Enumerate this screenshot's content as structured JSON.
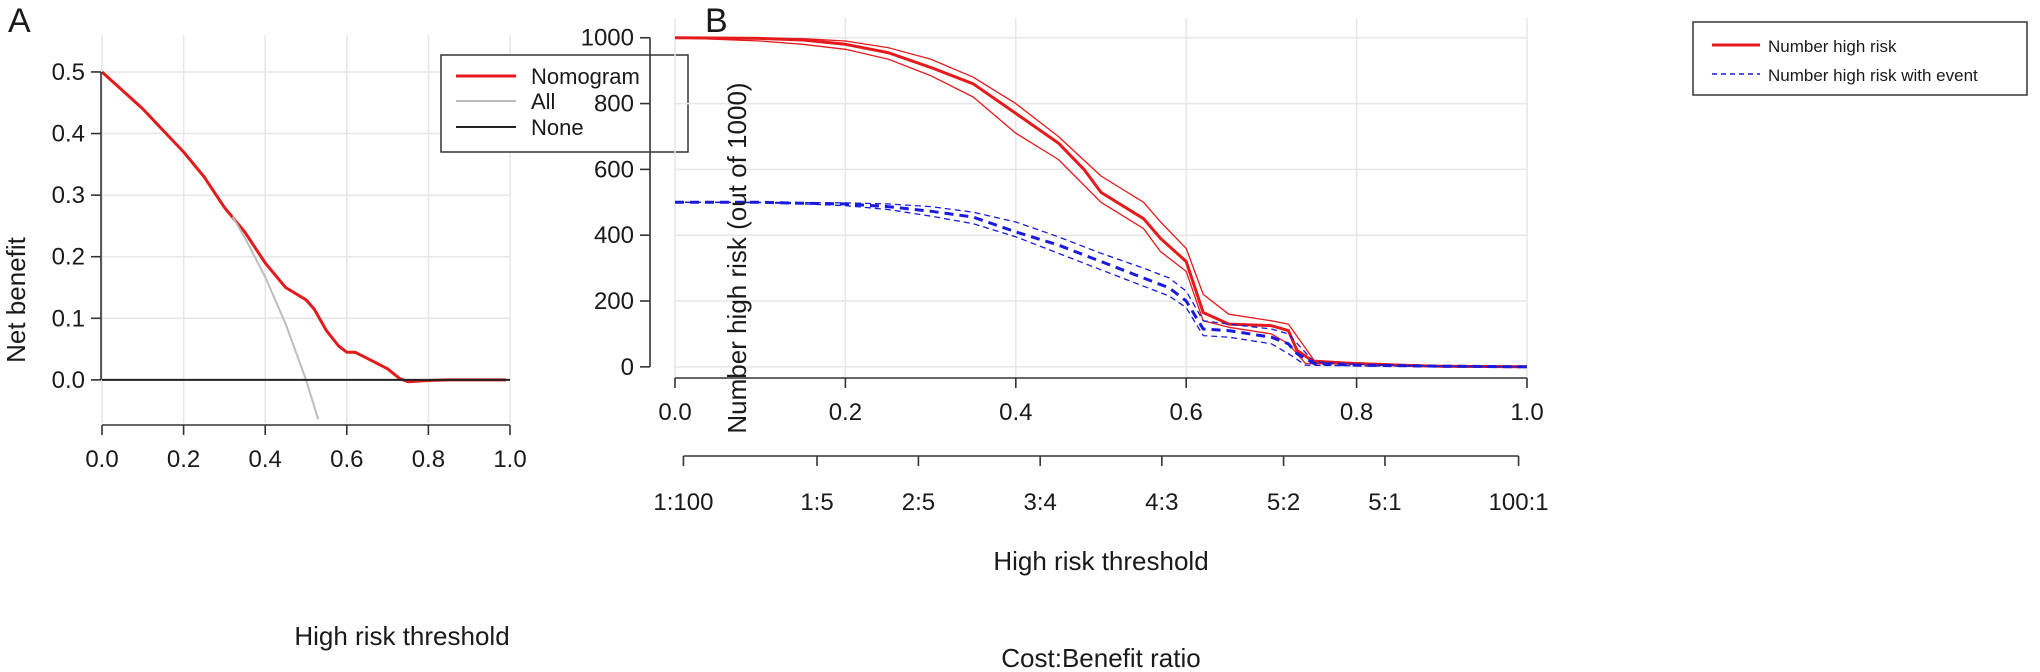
{
  "chart_data": [
    {
      "type": "line",
      "panel_label": "A",
      "xlabel": "High risk threshold",
      "ylabel": "Net benefit",
      "xlim": [
        0,
        1
      ],
      "ylim": [
        -0.07,
        0.56
      ],
      "x_ticks": [
        "0.0",
        "0.2",
        "0.4",
        "0.6",
        "0.8",
        "1.0"
      ],
      "y_ticks": [
        "0.0",
        "0.1",
        "0.2",
        "0.3",
        "0.4",
        "0.5"
      ],
      "grid": true,
      "legend_position": "top-right",
      "series": [
        {
          "name": "Nomogram",
          "color": "#e41a1c",
          "x": [
            0,
            0.05,
            0.1,
            0.15,
            0.2,
            0.25,
            0.3,
            0.35,
            0.4,
            0.45,
            0.5,
            0.52,
            0.55,
            0.58,
            0.6,
            0.62,
            0.65,
            0.7,
            0.73,
            0.75,
            0.8,
            0.85,
            0.9,
            0.95,
            0.99
          ],
          "y": [
            0.5,
            0.47,
            0.44,
            0.405,
            0.37,
            0.33,
            0.28,
            0.24,
            0.19,
            0.15,
            0.13,
            0.115,
            0.08,
            0.055,
            0.045,
            0.045,
            0.035,
            0.018,
            0.002,
            -0.003,
            -0.001,
            0.0,
            0.0,
            0.0,
            0.0
          ]
        },
        {
          "name": "All",
          "color": "#bdbdbd",
          "x": [
            0.32,
            0.35,
            0.4,
            0.45,
            0.5,
            0.53
          ],
          "y": [
            0.265,
            0.231,
            0.167,
            0.091,
            0.0,
            -0.064
          ]
        },
        {
          "name": "None",
          "color": "#222222",
          "x": [
            0,
            1
          ],
          "y": [
            0,
            0
          ]
        }
      ]
    },
    {
      "type": "line",
      "panel_label": "B",
      "xlabel": "High risk threshold",
      "ylabel": "Number high risk (out of 1000)",
      "xlim": [
        0,
        1
      ],
      "ylim": [
        -40,
        1060
      ],
      "x_ticks": [
        "0.0",
        "0.2",
        "0.4",
        "0.6",
        "0.8",
        "1.0"
      ],
      "y_ticks": [
        "0",
        "200",
        "400",
        "600",
        "800",
        "1000"
      ],
      "secondary_axis_label": "Cost:Benefit ratio",
      "secondary_ticks": [
        {
          "label": "1:100",
          "at": 0.0099
        },
        {
          "label": "1:5",
          "at": 0.1667
        },
        {
          "label": "2:5",
          "at": 0.2857
        },
        {
          "label": "3:4",
          "at": 0.4286
        },
        {
          "label": "4:3",
          "at": 0.5714
        },
        {
          "label": "5:2",
          "at": 0.7143
        },
        {
          "label": "5:1",
          "at": 0.8333
        },
        {
          "label": "100:1",
          "at": 0.9901
        }
      ],
      "grid": true,
      "legend_position": "top-right",
      "series": [
        {
          "name": "Number high risk",
          "color": "#e41a1c",
          "style": "solid",
          "x": [
            0,
            0.1,
            0.15,
            0.2,
            0.25,
            0.3,
            0.35,
            0.4,
            0.45,
            0.48,
            0.5,
            0.55,
            0.57,
            0.6,
            0.62,
            0.65,
            0.7,
            0.72,
            0.73,
            0.75,
            0.8,
            0.85,
            0.9,
            1.0
          ],
          "y": [
            1000,
            998,
            993,
            980,
            955,
            910,
            860,
            770,
            680,
            600,
            530,
            450,
            390,
            320,
            165,
            130,
            125,
            110,
            50,
            15,
            10,
            5,
            2,
            0
          ]
        },
        {
          "name": "",
          "color": "#e41a1c",
          "style": "thin",
          "x": [
            0,
            0.1,
            0.15,
            0.2,
            0.25,
            0.3,
            0.35,
            0.4,
            0.45,
            0.5,
            0.55,
            0.57,
            0.6,
            0.62,
            0.65,
            0.7,
            0.72,
            0.75,
            0.8,
            0.9,
            1.0
          ],
          "y": [
            1000,
            999,
            997,
            990,
            970,
            935,
            880,
            800,
            700,
            580,
            500,
            440,
            360,
            220,
            160,
            140,
            130,
            20,
            12,
            3,
            0
          ]
        },
        {
          "name": "",
          "color": "#e41a1c",
          "style": "thin",
          "x": [
            0,
            0.1,
            0.15,
            0.2,
            0.25,
            0.3,
            0.35,
            0.4,
            0.45,
            0.5,
            0.55,
            0.57,
            0.6,
            0.62,
            0.65,
            0.7,
            0.72,
            0.74,
            0.8,
            0.9,
            1.0
          ],
          "y": [
            1000,
            990,
            980,
            965,
            935,
            885,
            820,
            710,
            630,
            500,
            420,
            350,
            290,
            140,
            120,
            100,
            70,
            10,
            8,
            1,
            0
          ]
        },
        {
          "name": "Number high risk with event",
          "color": "#1a1adc",
          "style": "dashed",
          "x": [
            0,
            0.1,
            0.15,
            0.2,
            0.25,
            0.3,
            0.35,
            0.4,
            0.45,
            0.5,
            0.55,
            0.58,
            0.6,
            0.62,
            0.65,
            0.7,
            0.72,
            0.73,
            0.75,
            0.8,
            0.9,
            1.0
          ],
          "y": [
            500,
            500,
            497,
            495,
            487,
            473,
            455,
            410,
            370,
            320,
            270,
            240,
            200,
            115,
            110,
            90,
            70,
            40,
            10,
            5,
            2,
            0
          ]
        },
        {
          "name": "",
          "color": "#1a1adc",
          "style": "thin-dashed",
          "x": [
            0,
            0.1,
            0.15,
            0.2,
            0.25,
            0.3,
            0.35,
            0.4,
            0.45,
            0.5,
            0.55,
            0.58,
            0.6,
            0.62,
            0.65,
            0.7,
            0.72,
            0.75,
            0.8,
            0.9,
            1.0
          ],
          "y": [
            500,
            500,
            499,
            498,
            495,
            487,
            470,
            440,
            395,
            345,
            300,
            270,
            230,
            140,
            130,
            115,
            100,
            15,
            8,
            2,
            0
          ]
        },
        {
          "name": "",
          "color": "#1a1adc",
          "style": "thin-dashed",
          "x": [
            0,
            0.1,
            0.15,
            0.2,
            0.25,
            0.3,
            0.35,
            0.4,
            0.45,
            0.5,
            0.55,
            0.58,
            0.6,
            0.62,
            0.65,
            0.7,
            0.72,
            0.74,
            0.8,
            0.9,
            1.0
          ],
          "y": [
            500,
            499,
            495,
            490,
            478,
            458,
            435,
            395,
            345,
            295,
            245,
            215,
            180,
            95,
            90,
            70,
            40,
            5,
            3,
            1,
            0
          ]
        }
      ]
    }
  ]
}
